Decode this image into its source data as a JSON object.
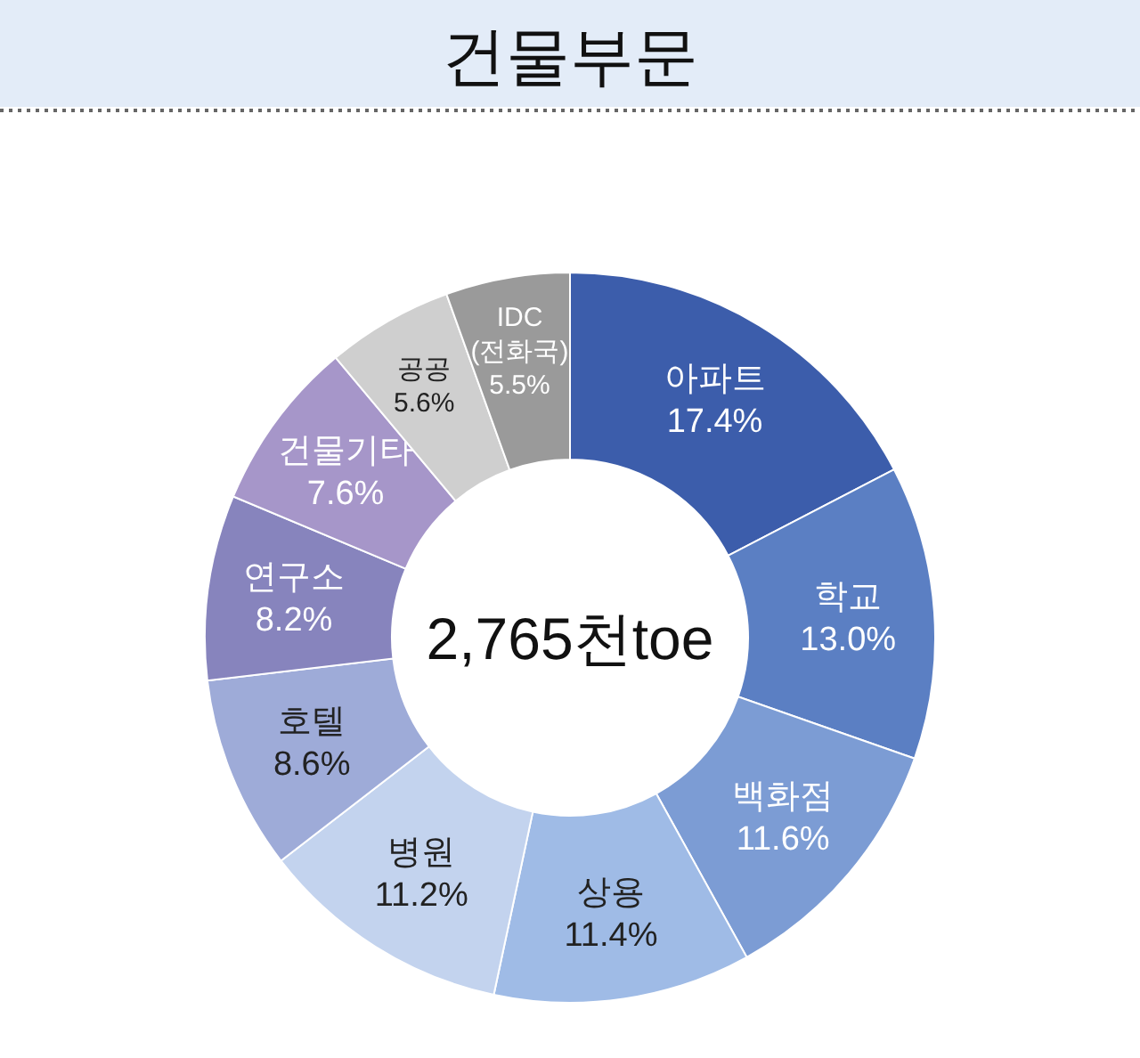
{
  "chart_data": {
    "type": "donut",
    "title": "건물부문",
    "categories": [
      "아파트",
      "학교",
      "백화점",
      "상용",
      "병원",
      "호텔",
      "연구소",
      "건물기타",
      "공공",
      "IDC\n(전화국)"
    ],
    "values": [
      17.4,
      13.0,
      11.6,
      11.4,
      11.2,
      8.6,
      8.2,
      7.6,
      5.6,
      5.5
    ],
    "value_labels": [
      "17.4%",
      "13.0%",
      "11.6%",
      "11.4%",
      "11.2%",
      "8.6%",
      "8.2%",
      "7.6%",
      "5.6%",
      "5.5%"
    ],
    "colors": [
      "#3c5dab",
      "#5b7fc3",
      "#7c9cd4",
      "#9fbbe6",
      "#c3d3ee",
      "#9eabd8",
      "#8784bd",
      "#a696c9",
      "#cfcfcf",
      "#9a9a9a"
    ],
    "annotations": [
      "2,765천toe"
    ]
  }
}
